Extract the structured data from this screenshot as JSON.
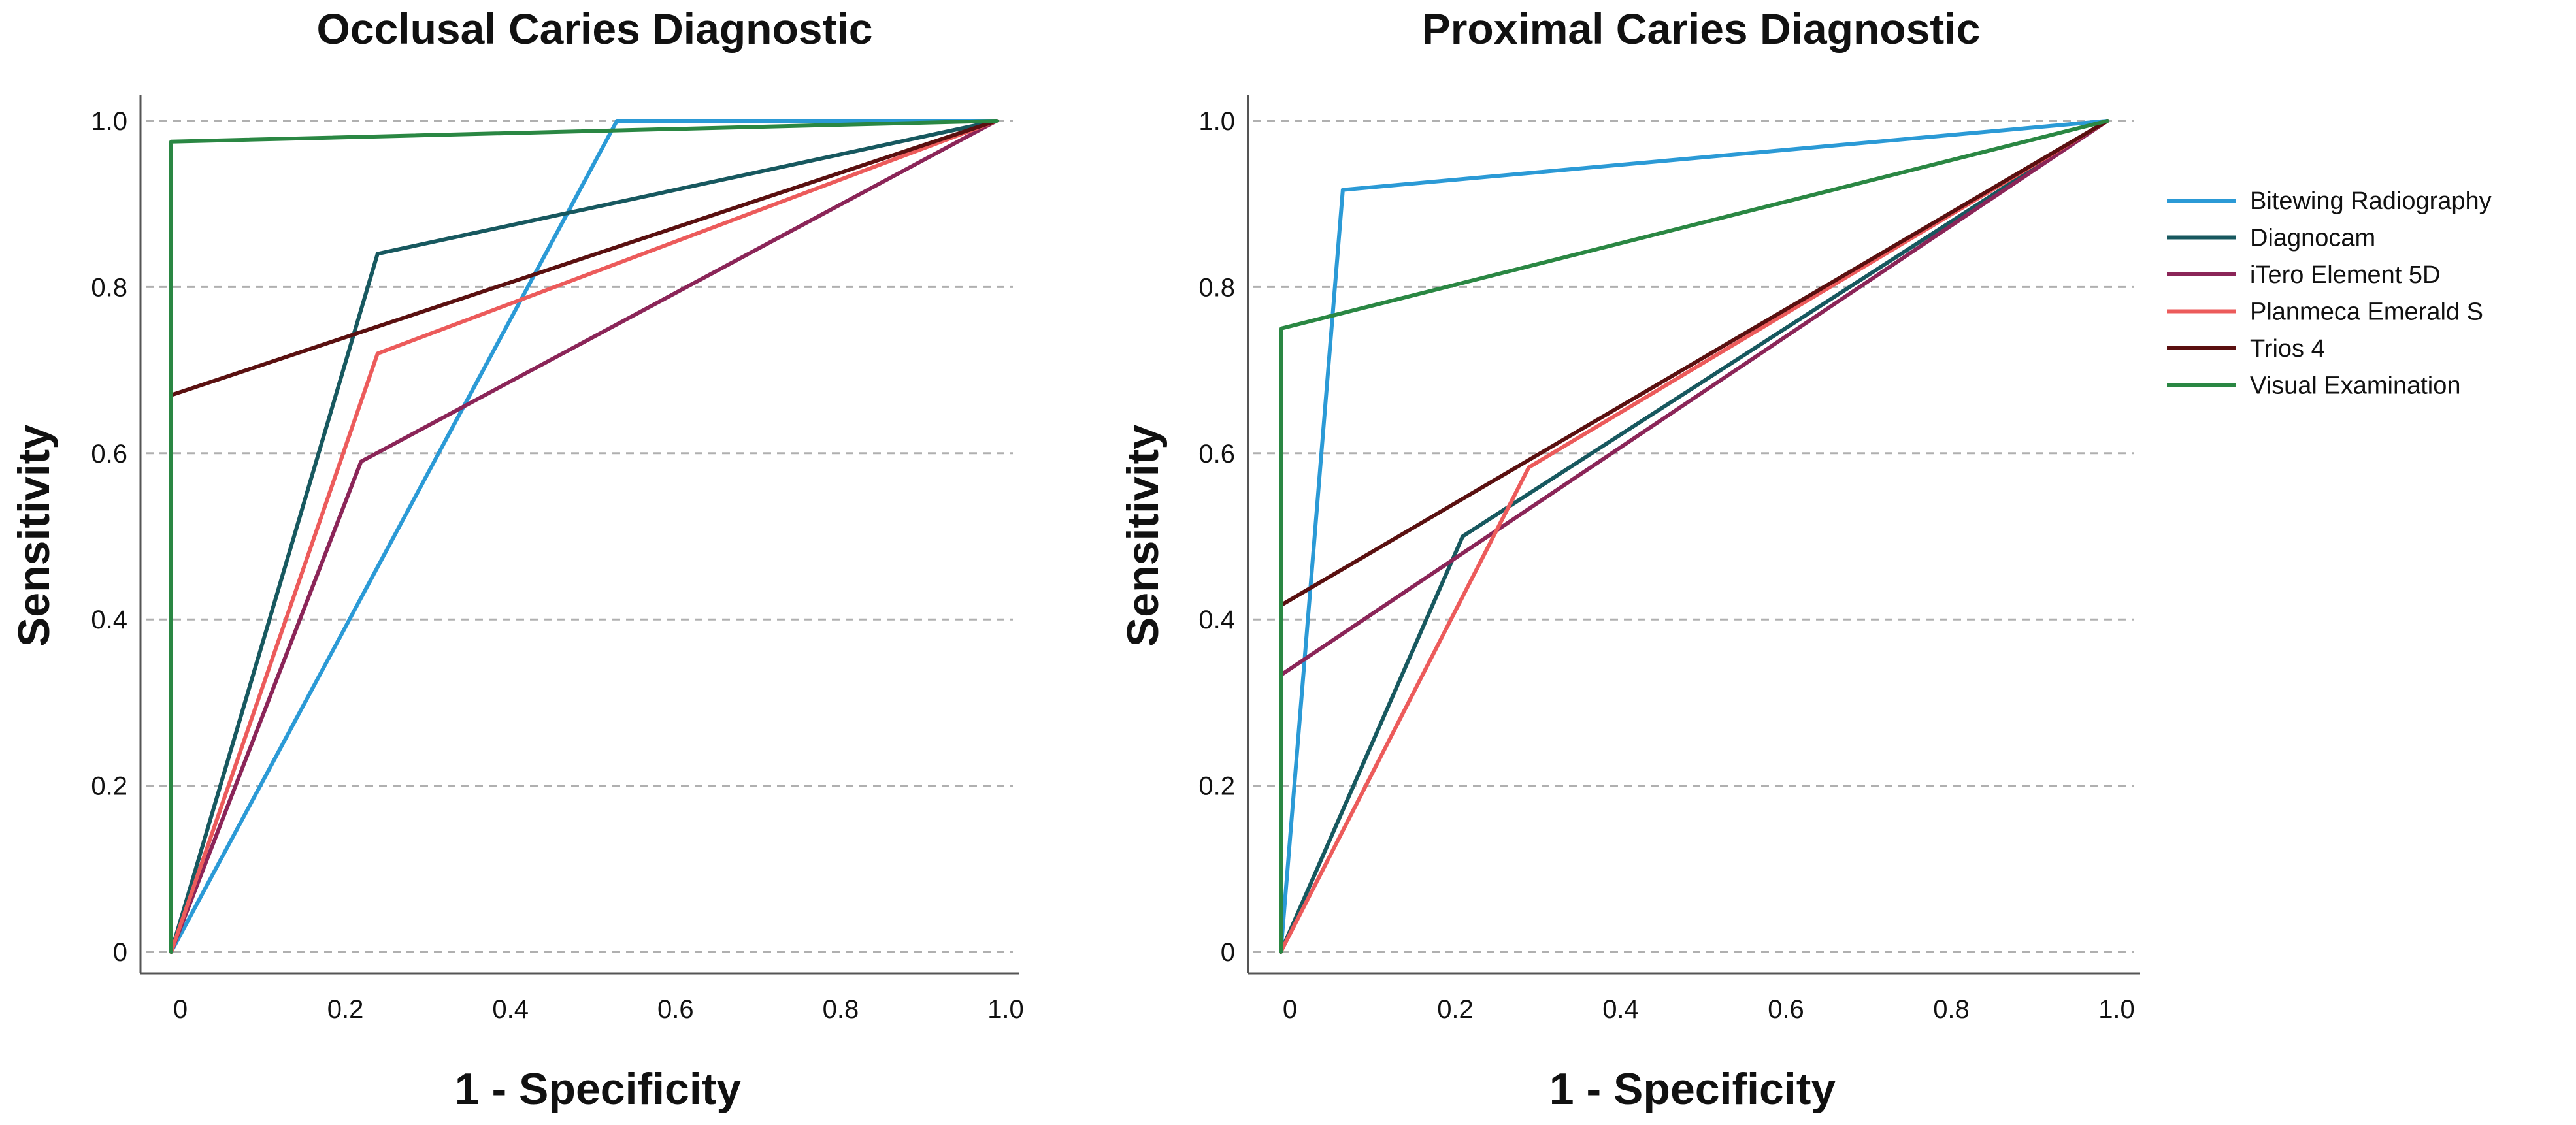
{
  "legend": [
    {
      "name": "Bitewing Radiography",
      "color": "#2b9ad6"
    },
    {
      "name": "Diagnocam",
      "color": "#17585f"
    },
    {
      "name": "iTero Element 5D",
      "color": "#8b2558"
    },
    {
      "name": "Planmeca Emerald S",
      "color": "#ec5b5b"
    },
    {
      "name": "Trios 4",
      "color": "#5a1010"
    },
    {
      "name": "Visual Examination",
      "color": "#2a8743"
    }
  ],
  "chart_data": [
    {
      "type": "line",
      "title": "Occlusal Caries Diagnostic",
      "xlabel": "1 - Specificity",
      "ylabel": "Sensitivity",
      "xlim": [
        0,
        1
      ],
      "ylim": [
        0,
        1
      ],
      "x_ticks": [
        "0",
        "0.2",
        "0.4",
        "0.6",
        "0.8",
        "1.0"
      ],
      "y_ticks": [
        "0",
        "0.2",
        "0.4",
        "0.6",
        "0.8",
        "1.0"
      ],
      "grid": "horizontal dashed",
      "series": [
        {
          "name": "Bitewing Radiography",
          "x": [
            0,
            0.54,
            1.0
          ],
          "y": [
            0,
            1.0,
            1.0
          ]
        },
        {
          "name": "Diagnocam",
          "x": [
            0,
            0.25,
            1.0
          ],
          "y": [
            0,
            0.84,
            1.0
          ]
        },
        {
          "name": "iTero Element 5D",
          "x": [
            0,
            0.23,
            1.0
          ],
          "y": [
            0,
            0.59,
            1.0
          ]
        },
        {
          "name": "Planmeca Emerald S",
          "x": [
            0,
            0.25,
            1.0
          ],
          "y": [
            0,
            0.72,
            1.0
          ]
        },
        {
          "name": "Trios 4",
          "x": [
            0,
            0,
            1.0
          ],
          "y": [
            0,
            0.67,
            1.0
          ]
        },
        {
          "name": "Visual Examination",
          "x": [
            0,
            0,
            1.0
          ],
          "y": [
            0,
            0.975,
            1.0
          ]
        }
      ]
    },
    {
      "type": "line",
      "title": "Proximal Caries Diagnostic",
      "xlabel": "1 - Specificity",
      "ylabel": "Sensitivity",
      "xlim": [
        0,
        1
      ],
      "ylim": [
        0,
        1
      ],
      "x_ticks": [
        "0",
        "0.2",
        "0.4",
        "0.6",
        "0.8",
        "1.0"
      ],
      "y_ticks": [
        "0",
        "0.2",
        "0.4",
        "0.6",
        "0.8",
        "1.0"
      ],
      "grid": "horizontal dashed",
      "series": [
        {
          "name": "Bitewing Radiography",
          "x": [
            0,
            0.075,
            1.0
          ],
          "y": [
            0,
            0.917,
            1.0
          ]
        },
        {
          "name": "Diagnocam",
          "x": [
            0,
            0.22,
            1.0
          ],
          "y": [
            0,
            0.5,
            1.0
          ]
        },
        {
          "name": "iTero Element 5D",
          "x": [
            0,
            0,
            1.0
          ],
          "y": [
            0,
            0.333,
            1.0
          ]
        },
        {
          "name": "Planmeca Emerald S",
          "x": [
            0,
            0.3,
            1.0
          ],
          "y": [
            0,
            0.583,
            1.0
          ]
        },
        {
          "name": "Trios 4",
          "x": [
            0,
            0,
            1.0
          ],
          "y": [
            0,
            0.417,
            1.0
          ]
        },
        {
          "name": "Visual Examination",
          "x": [
            0,
            0,
            1.0
          ],
          "y": [
            0,
            0.75,
            1.0
          ]
        }
      ]
    }
  ]
}
